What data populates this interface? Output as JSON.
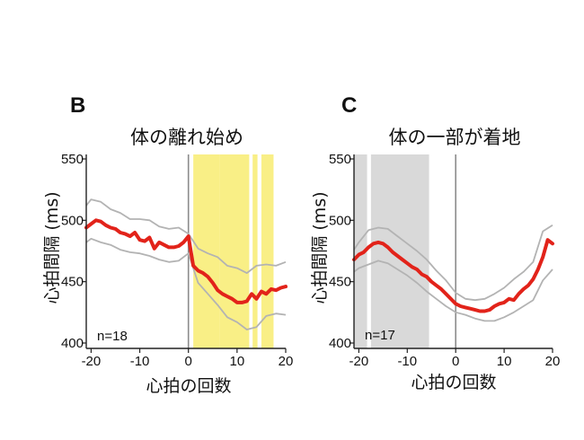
{
  "chart_data": [
    {
      "type": "line",
      "panel_label": "B",
      "title": "体の離れ始め",
      "xlabel": "心拍の回数",
      "ylabel": "心拍間隔 (ms)",
      "xlim": [
        -21,
        20
      ],
      "ylim": [
        395,
        555
      ],
      "x_ticks": [
        "-20",
        "-10",
        "0",
        "10",
        "20"
      ],
      "y_ticks": [
        "550",
        "500",
        "450",
        "400"
      ],
      "annotation": "n=18",
      "event_x": 0,
      "shaded_regions": [
        {
          "color": "#f9ef86",
          "ranges": [
            [
              1,
              6.5
            ],
            [
              6.5,
              12.5
            ],
            [
              13.2,
              14.2
            ],
            [
              15,
              17.5
            ]
          ]
        }
      ],
      "series": [
        {
          "role": "mean",
          "color": "#e2231a",
          "x": [
            -21,
            -20,
            -19,
            -18,
            -17,
            -16,
            -15,
            -14,
            -13,
            -12,
            -11,
            -10,
            -9,
            -8,
            -7,
            -6,
            -5,
            -4,
            -3,
            -2,
            -1,
            0,
            1,
            2,
            3,
            4,
            5,
            6,
            7,
            8,
            9,
            10,
            11,
            12,
            13,
            14,
            15,
            16,
            17,
            18,
            19,
            20
          ],
          "y": [
            494,
            497,
            500,
            499,
            496,
            494,
            493,
            490,
            489,
            487,
            490,
            484,
            483,
            486,
            477,
            482,
            480,
            478,
            478,
            479,
            482,
            487,
            463,
            459,
            457,
            454,
            449,
            443,
            440,
            438,
            436,
            433,
            433,
            434,
            440,
            436,
            442,
            440,
            444,
            443,
            445,
            446
          ]
        },
        {
          "role": "upper",
          "color": "#b3b3b3",
          "x": [
            -21,
            -20,
            -18,
            -16,
            -14,
            -12,
            -10,
            -8,
            -6,
            -4,
            -2,
            0,
            2,
            4,
            6,
            8,
            10,
            12,
            14,
            16,
            18,
            20
          ],
          "y": [
            512,
            517,
            515,
            509,
            506,
            501,
            501,
            500,
            495,
            493,
            494,
            489,
            477,
            473,
            470,
            463,
            461,
            457,
            463,
            464,
            463,
            466
          ]
        },
        {
          "role": "lower",
          "color": "#b3b3b3",
          "x": [
            -21,
            -20,
            -18,
            -16,
            -14,
            -12,
            -10,
            -8,
            -6,
            -4,
            -2,
            0,
            2,
            4,
            6,
            8,
            10,
            12,
            14,
            16,
            18,
            20
          ],
          "y": [
            482,
            485,
            482,
            480,
            476,
            474,
            473,
            471,
            468,
            466,
            467,
            473,
            449,
            440,
            431,
            421,
            417,
            411,
            413,
            422,
            424,
            423
          ]
        }
      ]
    },
    {
      "type": "line",
      "panel_label": "C",
      "title": "体の一部が着地",
      "xlabel": "心拍の回数",
      "ylabel": "心拍間隔 (ms)",
      "xlim": [
        -21,
        20
      ],
      "ylim": [
        395,
        555
      ],
      "x_ticks": [
        "-20",
        "-10",
        "0",
        "10",
        "20"
      ],
      "y_ticks": [
        "550",
        "500",
        "450",
        "400"
      ],
      "annotation": "n=17",
      "event_x": 0,
      "shaded_regions": [
        {
          "color": "#d9d9d9",
          "ranges": [
            [
              -21,
              -18.3
            ],
            [
              -17.5,
              -5.5
            ]
          ]
        }
      ],
      "series": [
        {
          "role": "mean",
          "color": "#e2231a",
          "x": [
            -21,
            -20,
            -19,
            -18,
            -17,
            -16,
            -15,
            -14,
            -13,
            -12,
            -11,
            -10,
            -9,
            -8,
            -7,
            -6,
            -5,
            -4,
            -3,
            -2,
            -1,
            0,
            1,
            2,
            3,
            4,
            5,
            6,
            7,
            8,
            9,
            10,
            11,
            12,
            13,
            14,
            15,
            16,
            17,
            18,
            19,
            20
          ],
          "y": [
            468,
            472,
            474,
            478,
            481,
            482,
            481,
            478,
            474,
            471,
            468,
            465,
            462,
            460,
            456,
            454,
            450,
            447,
            444,
            440,
            436,
            432,
            430,
            429,
            428,
            427,
            426,
            426,
            427,
            430,
            432,
            433,
            436,
            435,
            440,
            444,
            447,
            452,
            460,
            470,
            484,
            481
          ]
        },
        {
          "role": "upper",
          "color": "#b3b3b3",
          "x": [
            -21,
            -20,
            -18,
            -16,
            -14,
            -12,
            -10,
            -8,
            -6,
            -4,
            -2,
            0,
            2,
            4,
            6,
            8,
            10,
            12,
            14,
            16,
            18,
            20
          ],
          "y": [
            476,
            482,
            492,
            494,
            493,
            487,
            481,
            475,
            468,
            459,
            451,
            441,
            436,
            435,
            436,
            440,
            445,
            452,
            458,
            466,
            491,
            496
          ]
        },
        {
          "role": "lower",
          "color": "#b3b3b3",
          "x": [
            -21,
            -20,
            -18,
            -16,
            -14,
            -12,
            -10,
            -8,
            -6,
            -4,
            -2,
            0,
            2,
            4,
            6,
            8,
            10,
            12,
            14,
            16,
            18,
            20
          ],
          "y": [
            458,
            461,
            464,
            467,
            465,
            460,
            455,
            449,
            442,
            436,
            430,
            425,
            423,
            420,
            418,
            418,
            421,
            425,
            430,
            435,
            451,
            460
          ]
        }
      ]
    }
  ]
}
